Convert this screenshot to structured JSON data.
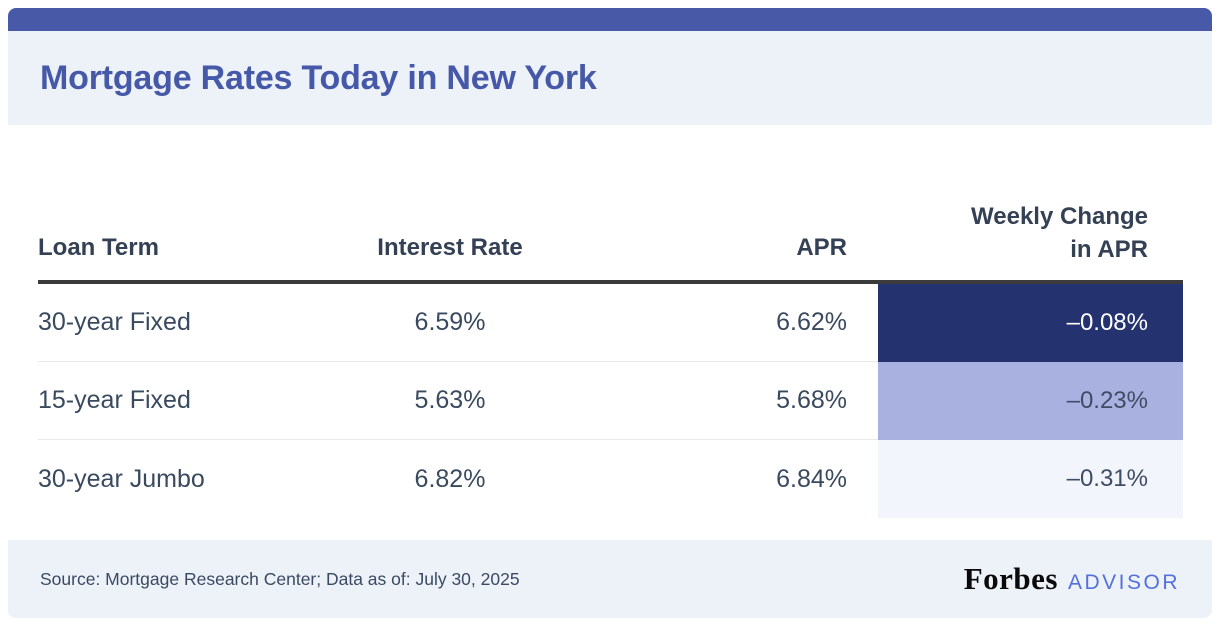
{
  "page": {
    "title": "Mortgage Rates Today in New York"
  },
  "chart_data": {
    "type": "table",
    "title": "Mortgage Rates Today in New York",
    "columns": [
      "Loan Term",
      "Interest Rate",
      "APR",
      "Weekly Change in APR"
    ],
    "rows": [
      [
        "30-year Fixed",
        "6.59%",
        "6.62%",
        "-0.08%"
      ],
      [
        "15-year Fixed",
        "5.63%",
        "5.68%",
        "-0.23%"
      ],
      [
        "30-year Jumbo",
        "6.82%",
        "6.84%",
        "-0.31%"
      ]
    ],
    "highlight_column": "Weekly Change in APR",
    "highlight_cell_colors": [
      "#253270",
      "#A8B1E0",
      "#F2F5FC"
    ],
    "source": "Source: Mortgage Research Center; Data as of: July 30, 2025"
  },
  "table": {
    "headers": {
      "loan_term": "Loan Term",
      "interest_rate": "Interest Rate",
      "apr": "APR",
      "weekly_change_line1": "Weekly Change",
      "weekly_change_line2": "in APR"
    },
    "rows": [
      {
        "loan_term": "30-year Fixed",
        "interest_rate": "6.59%",
        "apr": "6.62%",
        "weekly_change": "–0.08%"
      },
      {
        "loan_term": "15-year Fixed",
        "interest_rate": "5.63%",
        "apr": "5.68%",
        "weekly_change": "–0.23%"
      },
      {
        "loan_term": "30-year Jumbo",
        "interest_rate": "6.82%",
        "apr": "6.84%",
        "weekly_change": "–0.31%"
      }
    ]
  },
  "footer": {
    "source_text": "Source: Mortgage Research Center; Data as of: July 30, 2025",
    "brand_name": "Forbes",
    "brand_suffix": "ADVISOR"
  },
  "colors": {
    "accent_bar": "#4859A7",
    "band_background": "#EDF1F8",
    "title_text": "#4658A8",
    "weekly_dark": "#253270",
    "weekly_medium": "#A8B1E0",
    "weekly_light": "#F2F5FC",
    "advisor_blue": "#5370DC"
  }
}
